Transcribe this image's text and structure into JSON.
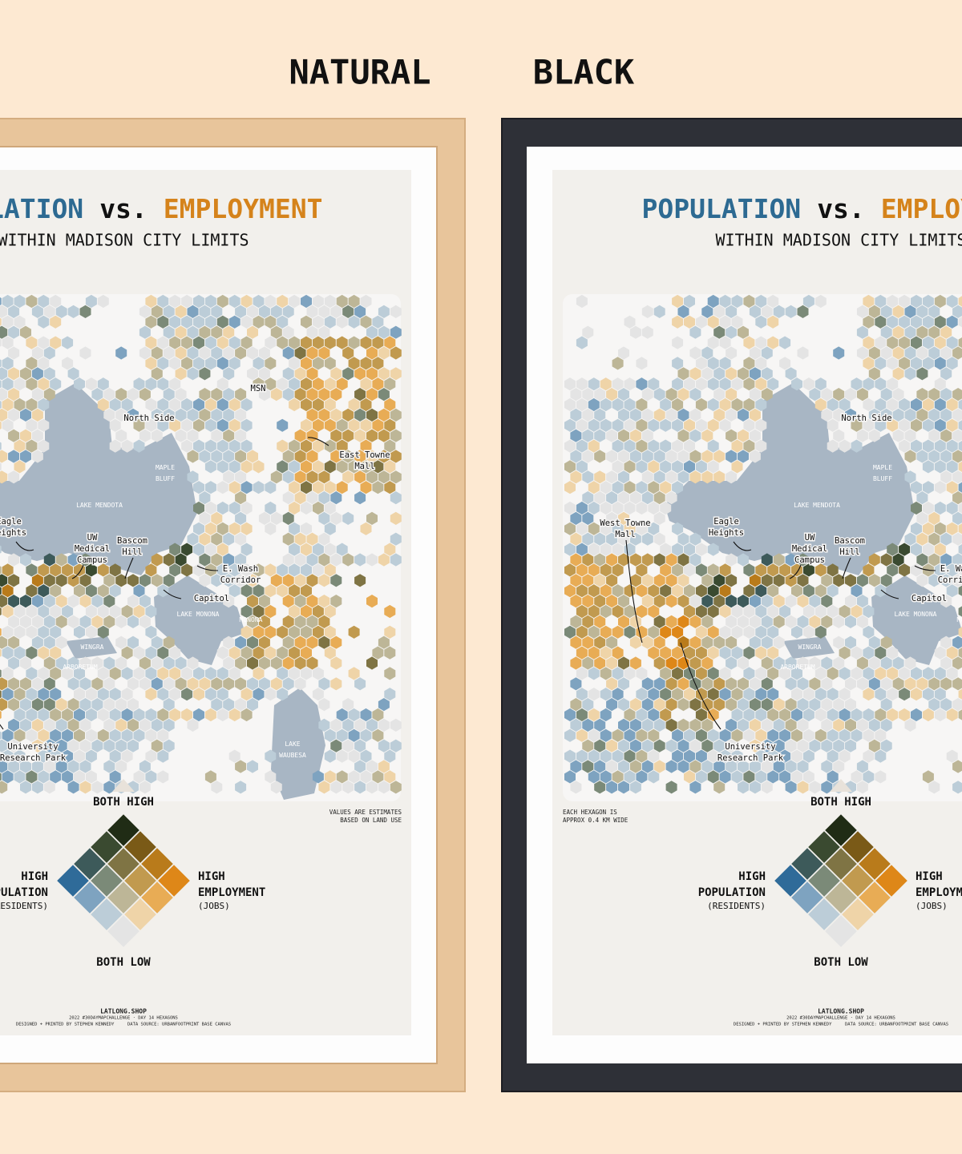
{
  "header": {
    "natural": "NATURAL",
    "black": "BLACK"
  },
  "poster": {
    "title": {
      "population": "POPULATION",
      "vs": "vs.",
      "employment": "EMPLOYMENT"
    },
    "subtitle": "WITHIN MADISON CITY LIMITS",
    "map_labels": [
      {
        "lines": [
          "North Side"
        ]
      },
      {
        "lines": [
          "MSN"
        ]
      },
      {
        "lines": [
          "East Towne",
          "Mall"
        ]
      },
      {
        "lines": [
          "MAPLE",
          "BLUFF"
        ]
      },
      {
        "lines": [
          "LAKE MENDOTA"
        ]
      },
      {
        "lines": [
          "Eagle",
          "Heights"
        ]
      },
      {
        "lines": [
          "UW",
          "Medical",
          "Campus"
        ]
      },
      {
        "lines": [
          "Bascom",
          "Hill"
        ]
      },
      {
        "lines": [
          "E. Wash",
          "Corridor"
        ]
      },
      {
        "lines": [
          "Capitol"
        ]
      },
      {
        "lines": [
          "LAKE MONONA"
        ]
      },
      {
        "lines": [
          "MONONA"
        ]
      },
      {
        "lines": [
          "WINGRA"
        ]
      },
      {
        "lines": [
          "ARBORETUM"
        ]
      },
      {
        "lines": [
          "University",
          "Research Park"
        ]
      },
      {
        "lines": [
          "LAKE",
          "WAUBESA"
        ]
      },
      {
        "lines": [
          "West Towne",
          "Mall"
        ]
      }
    ],
    "notes": {
      "left": [
        "EACH HEXAGON IS",
        "APPROX 0.4 KM WIDE"
      ],
      "right": [
        "VALUES ARE ESTIMATES",
        "BASED ON LAND USE"
      ]
    },
    "legend": {
      "top": "BOTH HIGH",
      "bottom": "BOTH LOW",
      "left": [
        "HIGH",
        "POPULATION",
        "(RESIDENTS)"
      ],
      "right": [
        "HIGH",
        "EMPLOYMENT",
        "(JOBS)"
      ]
    },
    "footer": [
      "LATLONG.SHOP",
      "2022 #30DAYMAPCHALLENGE · DAY 14 HEXAGONS",
      "DESIGNED + PRINTED BY STEPHEN KENNEDY     DATA SOURCE: URBANFOOTPRINT BASE CANVAS"
    ]
  }
}
